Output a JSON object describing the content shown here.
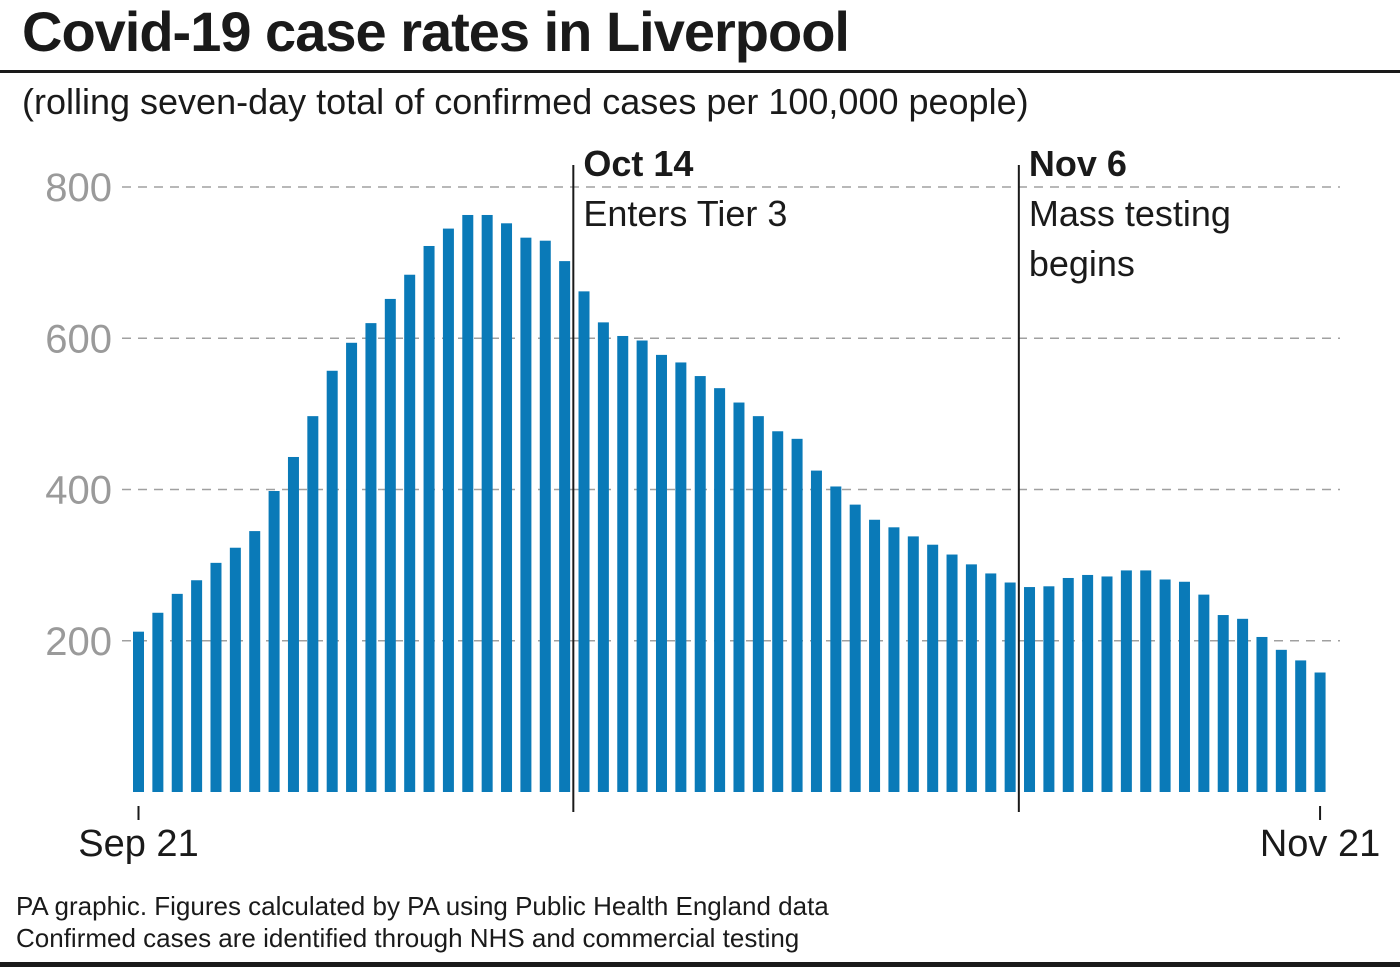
{
  "title": "Covid-19 case rates in Liverpool",
  "subtitle": "(rolling seven-day total of confirmed cases per 100,000 people)",
  "footer": {
    "line1": "PA graphic. Figures calculated by PA using Public Health England data",
    "line2": "Confirmed cases are identified through NHS and commercial testing"
  },
  "colors": {
    "bar": "#0a7ab8",
    "grid": "#a0a0a0",
    "tick_label": "#9a9a9a",
    "text": "#1a1a1a"
  },
  "chart_data": {
    "type": "bar",
    "title": "Covid-19 case rates in Liverpool",
    "subtitle": "(rolling seven-day total of confirmed cases per 100,000 people)",
    "xlabel": "",
    "ylabel": "",
    "ylim": [
      0,
      800
    ],
    "yticks": [
      200,
      400,
      600,
      800
    ],
    "grid": true,
    "x_start_label": "Sep 21",
    "x_end_label": "Nov 21",
    "values": [
      212,
      237,
      262,
      280,
      303,
      323,
      345,
      398,
      443,
      497,
      557,
      594,
      620,
      652,
      684,
      722,
      745,
      763,
      763,
      752,
      733,
      729,
      702,
      662,
      621,
      603,
      597,
      578,
      568,
      550,
      534,
      515,
      497,
      477,
      467,
      425,
      404,
      380,
      360,
      350,
      338,
      327,
      314,
      301,
      289,
      277,
      271,
      272,
      283,
      287,
      285,
      293,
      293,
      281,
      278,
      261,
      234,
      229,
      205,
      188,
      174,
      158
    ],
    "annotations": [
      {
        "index": 23,
        "date": "Oct 14",
        "text_lines": [
          "Enters Tier 3"
        ]
      },
      {
        "index": 46,
        "date": "Nov 6",
        "text_lines": [
          "Mass testing",
          "begins"
        ]
      }
    ]
  }
}
